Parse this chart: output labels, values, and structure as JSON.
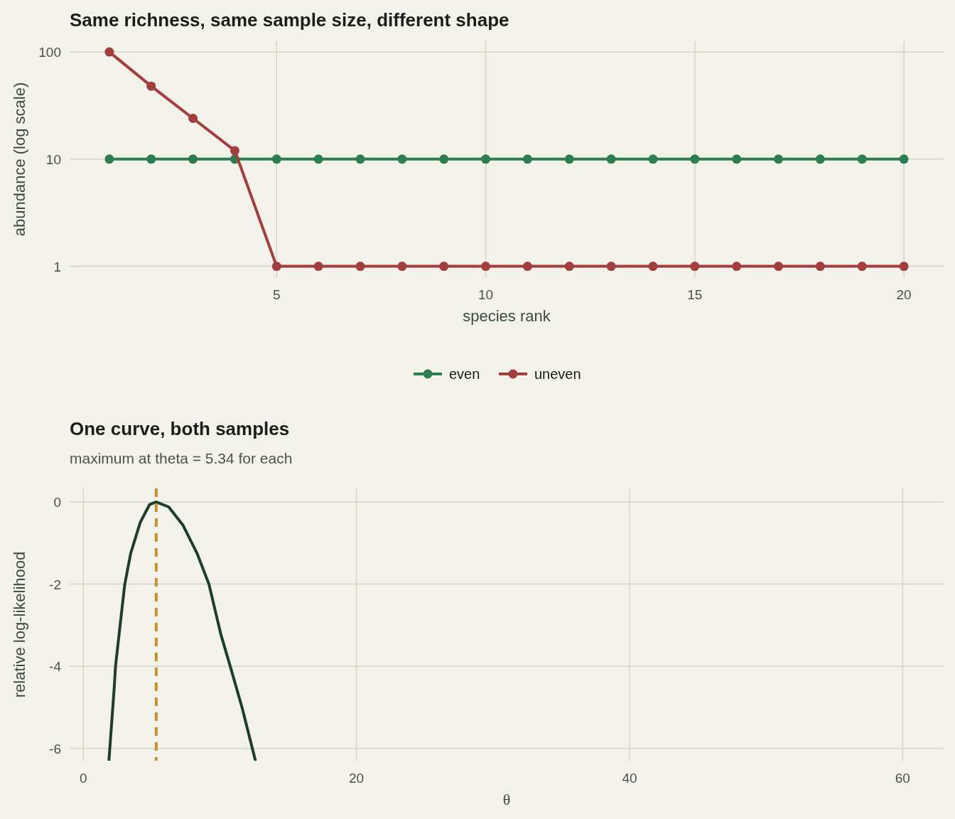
{
  "chart_data": [
    {
      "type": "line",
      "title": "Same richness, same sample size, different shape",
      "xlabel": "species rank",
      "ylabel": "abundance (log scale)",
      "x": [
        1,
        2,
        3,
        4,
        5,
        6,
        7,
        8,
        9,
        10,
        11,
        12,
        13,
        14,
        15,
        16,
        17,
        18,
        19,
        20
      ],
      "series": [
        {
          "name": "even",
          "color": "#2e7d4f",
          "values": [
            10,
            10,
            10,
            10,
            10,
            10,
            10,
            10,
            10,
            10,
            10,
            10,
            10,
            10,
            10,
            10,
            10,
            10,
            10,
            10
          ]
        },
        {
          "name": "uneven",
          "color": "#a23e3e",
          "values": [
            100,
            48,
            24,
            12,
            1,
            1,
            1,
            1,
            1,
            1,
            1,
            1,
            1,
            1,
            1,
            1,
            1,
            1,
            1,
            1
          ]
        }
      ],
      "xlim": [
        0.05,
        20.95
      ],
      "xticks": [
        5,
        10,
        15,
        20
      ],
      "ylim": [
        0.79,
        125.9
      ],
      "yticks": [
        1,
        10,
        100
      ],
      "log": "y",
      "grid": true,
      "legend": "bottom",
      "marker": "circle",
      "line_style": "solid"
    },
    {
      "type": "line",
      "title": "One curve, both samples",
      "subtitle": "maximum at theta = 5.34 for each",
      "xlabel": "θ",
      "ylabel": "relative log-likelihood",
      "x": [
        1.88,
        2.26,
        2.36,
        2.78,
        3.04,
        3.47,
        4.17,
        4.86,
        5.34,
        6.25,
        7.29,
        8.33,
        9.2,
        10.07,
        10.76,
        11.63,
        12.59
      ],
      "series": [
        {
          "color": "#1f3d2b",
          "values": [
            -6.28,
            -4.55,
            -4,
            -2.75,
            -2,
            -1.25,
            -0.5,
            -0.06,
            0,
            -0.12,
            -0.56,
            -1.25,
            -2,
            -3.22,
            -4,
            -5.01,
            -6.28
          ]
        }
      ],
      "ref_lines": [
        {
          "axis": "x",
          "value": 5.34,
          "color": "#c4922e",
          "line_style": "dashed"
        }
      ],
      "xlim": [
        -1,
        63
      ],
      "xticks": [
        0,
        20,
        40,
        60
      ],
      "ylim": [
        -6.3,
        0.33
      ],
      "yticks": [
        0,
        -2,
        -4,
        -6
      ],
      "grid": true,
      "marker": "none",
      "line_style": "solid"
    }
  ]
}
